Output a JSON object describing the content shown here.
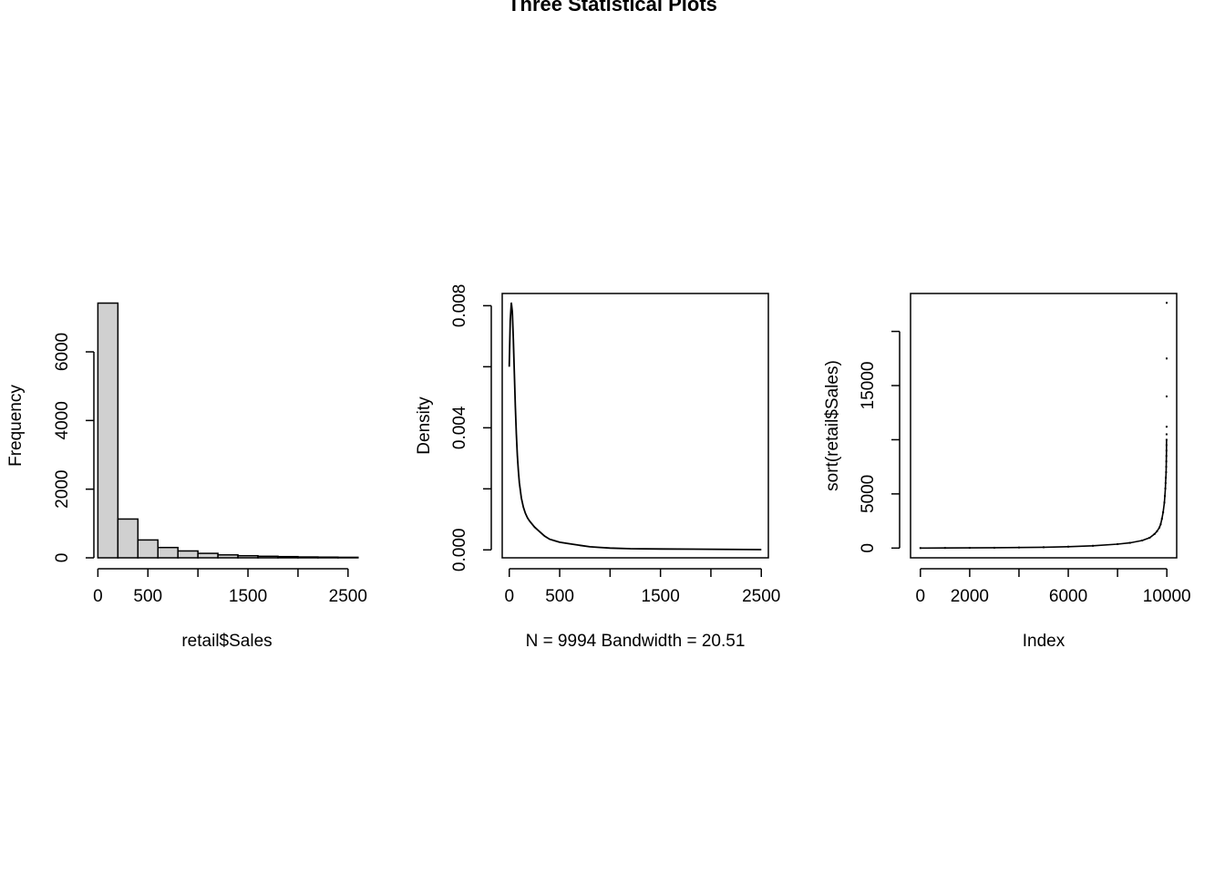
{
  "figure": {
    "title": "Three Statistical Plots"
  },
  "chart_data": [
    {
      "type": "bar",
      "subtype": "histogram",
      "xlabel": "retail$Sales",
      "ylabel": "Frequency",
      "bin_width": 200,
      "bins": [
        {
          "from": 0,
          "to": 200,
          "count": 7420
        },
        {
          "from": 200,
          "to": 400,
          "count": 1130
        },
        {
          "from": 400,
          "to": 600,
          "count": 520
        },
        {
          "from": 600,
          "to": 800,
          "count": 300
        },
        {
          "from": 800,
          "to": 1000,
          "count": 200
        },
        {
          "from": 1000,
          "to": 1200,
          "count": 130
        },
        {
          "from": 1200,
          "to": 1400,
          "count": 85
        },
        {
          "from": 1400,
          "to": 1600,
          "count": 60
        },
        {
          "from": 1600,
          "to": 1800,
          "count": 45
        },
        {
          "from": 1800,
          "to": 2000,
          "count": 35
        },
        {
          "from": 2000,
          "to": 2200,
          "count": 25
        },
        {
          "from": 2200,
          "to": 2400,
          "count": 20
        },
        {
          "from": 2400,
          "to": 2600,
          "count": 15
        }
      ],
      "xticks": [
        0,
        500,
        1000,
        1500,
        2000,
        2500
      ],
      "xtick_labels": [
        "0",
        "500",
        "",
        "1500",
        "",
        "2500"
      ],
      "yticks": [
        0,
        2000,
        4000,
        6000
      ],
      "ytick_labels": [
        "0",
        "2000",
        "4000",
        "6000"
      ],
      "xlim": [
        -40,
        2620
      ],
      "ylim": [
        0,
        7700
      ],
      "bar_color": "#d0d0d0"
    },
    {
      "type": "line",
      "subtype": "density",
      "xlabel": "N = 9994   Bandwidth = 20.51",
      "ylabel": "Density",
      "x": [
        0,
        10,
        20,
        30,
        40,
        50,
        60,
        70,
        80,
        90,
        100,
        120,
        140,
        160,
        180,
        200,
        250,
        300,
        350,
        400,
        450,
        500,
        600,
        700,
        800,
        900,
        1000,
        1200,
        1500,
        2000,
        2500
      ],
      "y": [
        0.006,
        0.0075,
        0.0081,
        0.0078,
        0.0069,
        0.0058,
        0.0047,
        0.0038,
        0.0031,
        0.0026,
        0.0022,
        0.0017,
        0.0014,
        0.0012,
        0.00105,
        0.00095,
        0.00075,
        0.0006,
        0.00045,
        0.00035,
        0.0003,
        0.00025,
        0.0002,
        0.00015,
        0.0001,
        8e-05,
        6e-05,
        4e-05,
        3e-05,
        2e-05,
        1e-05
      ],
      "xticks": [
        0,
        500,
        1000,
        1500,
        2000,
        2500
      ],
      "xtick_labels": [
        "0",
        "500",
        "",
        "1500",
        "",
        "2500"
      ],
      "yticks": [
        0.0,
        0.002,
        0.004,
        0.006,
        0.008
      ],
      "ytick_labels": [
        "0.000",
        "",
        "0.004",
        "",
        "0.008"
      ],
      "xlim": [
        -70,
        2570
      ],
      "ylim": [
        -0.00026,
        0.0084
      ]
    },
    {
      "type": "scatter",
      "subtype": "index",
      "xlabel": "Index",
      "ylabel": "sort(retail$Sales)",
      "x": [
        0,
        1000,
        2000,
        3000,
        4000,
        5000,
        6000,
        7000,
        8000,
        8500,
        9000,
        9300,
        9500,
        9600,
        9700,
        9750,
        9800,
        9850,
        9900,
        9920,
        9940,
        9950,
        9960,
        9970,
        9975,
        9980,
        9983,
        9985,
        9987,
        9989,
        9990,
        9991,
        9992,
        9993,
        9994
      ],
      "y": [
        1,
        8,
        17,
        30,
        50,
        80,
        130,
        210,
        360,
        480,
        700,
        950,
        1300,
        1550,
        1900,
        2200,
        2700,
        3300,
        4200,
        4800,
        5500,
        6000,
        6500,
        7000,
        7500,
        8000,
        8500,
        9000,
        9500,
        10000,
        10500,
        11200,
        13999,
        17500,
        22638
      ],
      "xticks": [
        0,
        2000,
        4000,
        6000,
        8000,
        10000
      ],
      "xtick_labels": [
        "0",
        "2000",
        "",
        "6000",
        "",
        "10000"
      ],
      "yticks": [
        0,
        5000,
        10000,
        15000,
        20000
      ],
      "ytick_labels": [
        "0",
        "5000",
        "",
        "15000",
        ""
      ],
      "xlim": [
        -400,
        10400
      ],
      "ylim": [
        -900,
        23500
      ]
    }
  ]
}
